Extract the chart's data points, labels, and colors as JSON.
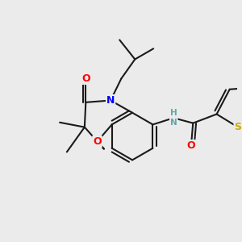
{
  "background_color": "#ebebeb",
  "atom_colors": {
    "C": "#1a1a1a",
    "N": "#0000ff",
    "O": "#ff0000",
    "S": "#ccaa00",
    "H": "#5fa8a8"
  },
  "bond_color": "#1a1a1a",
  "bond_width": 1.5,
  "figsize": [
    3.0,
    3.0
  ],
  "dpi": 100
}
